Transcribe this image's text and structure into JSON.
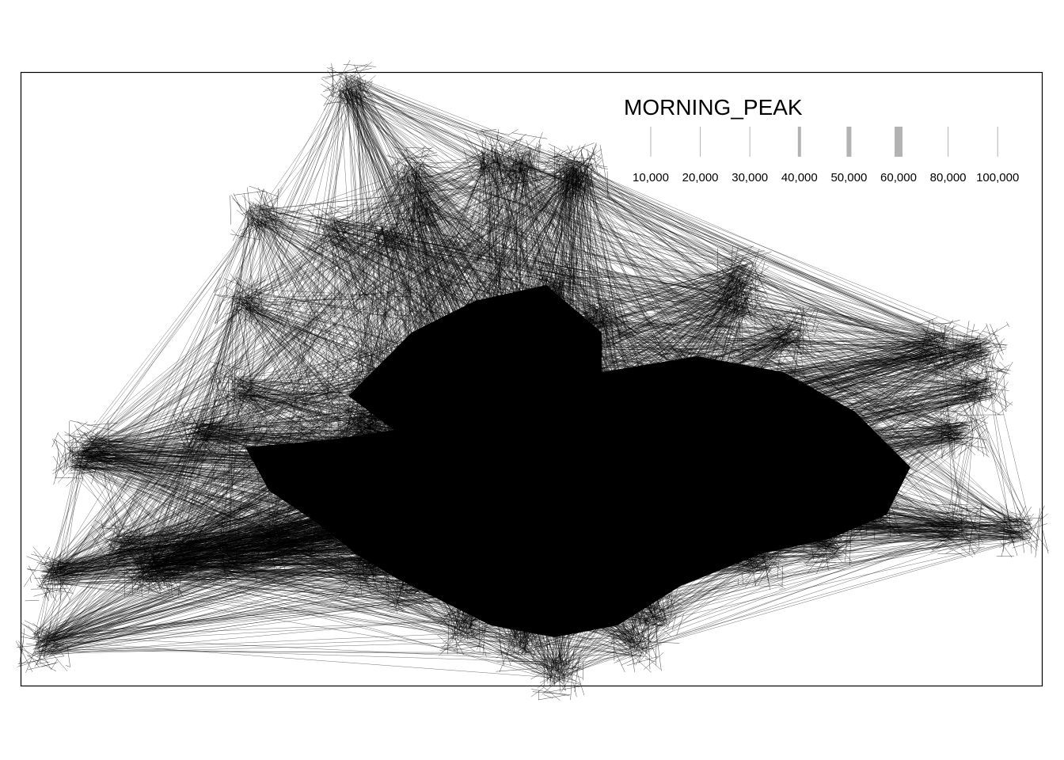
{
  "legend": {
    "title": "MORNING_PEAK",
    "item_color": "#b3b3b3",
    "items": [
      {
        "label": "10,000",
        "value": 10000
      },
      {
        "label": "20,000",
        "value": 20000
      },
      {
        "label": "30,000",
        "value": 30000
      },
      {
        "label": "40,000",
        "value": 40000
      },
      {
        "label": "50,000",
        "value": 50000
      },
      {
        "label": "60,000",
        "value": 60000
      },
      {
        "label": "80,000",
        "value": 80000
      },
      {
        "label": "100,000",
        "value": 100000
      }
    ]
  },
  "map": {
    "line_color": "#000000",
    "frame_color": "#000000",
    "background": "#ffffff"
  }
}
